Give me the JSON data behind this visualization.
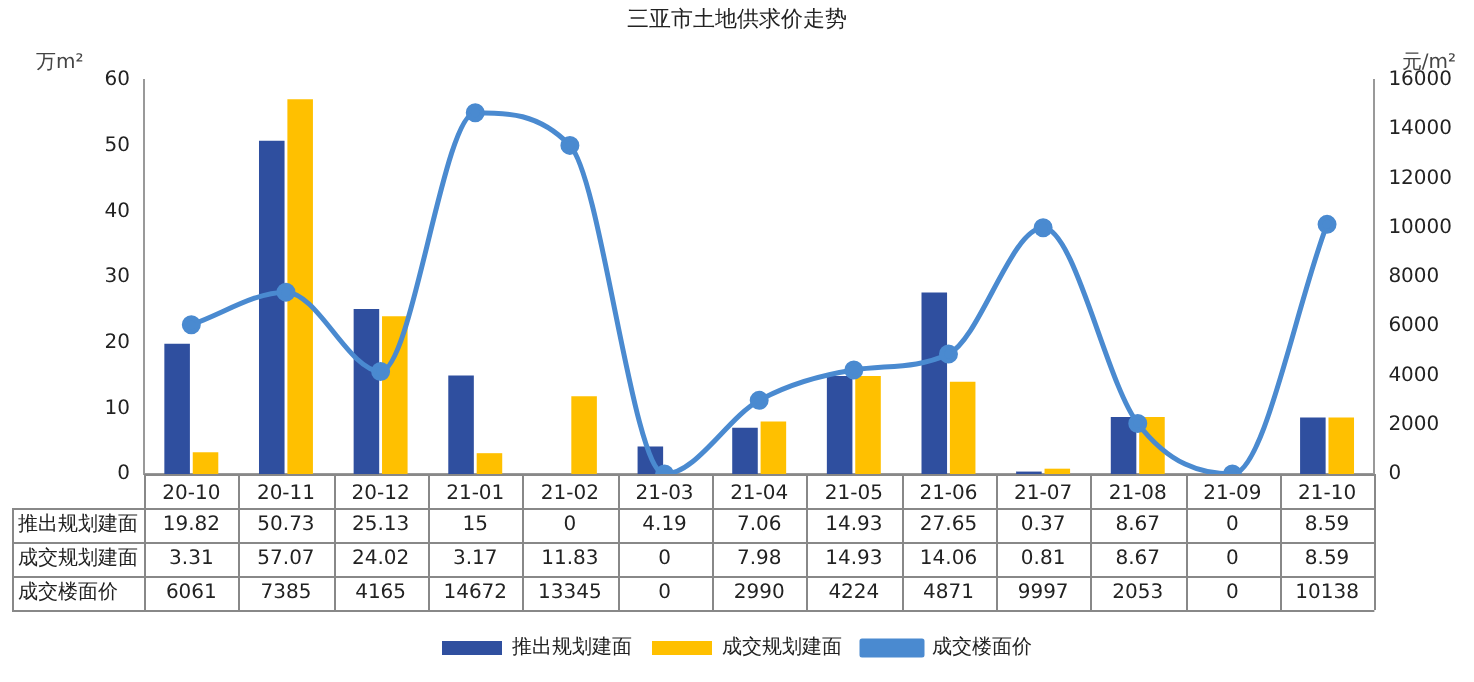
{
  "chart_data": {
    "type": "bar",
    "title": "三亚市土地供求价走势",
    "ylabel": "万m²",
    "y2label": "元/m²",
    "categories": [
      "20-10",
      "20-11",
      "20-12",
      "21-01",
      "21-02",
      "21-03",
      "21-04",
      "21-05",
      "21-06",
      "21-07",
      "21-08",
      "21-09",
      "21-10"
    ],
    "series": [
      {
        "name": "推出规划建面",
        "color": "#2f4f9f",
        "values": [
          19.82,
          50.73,
          25.13,
          15,
          0,
          4.19,
          7.06,
          14.93,
          27.65,
          0.37,
          8.67,
          0,
          8.59
        ]
      },
      {
        "name": "成交规划建面",
        "color": "#ffc000",
        "values": [
          3.31,
          57.07,
          24.02,
          3.17,
          11.83,
          0,
          7.98,
          14.93,
          14.06,
          0.81,
          8.67,
          0,
          8.59
        ]
      },
      {
        "name": "成交楼面价",
        "type": "line",
        "axis": "y2",
        "color": "#4a8ad0",
        "marker": "circle",
        "values": [
          6061,
          7385,
          4165,
          14672,
          13345,
          0,
          2990,
          4224,
          4871,
          9997,
          2053,
          0,
          10138
        ]
      }
    ],
    "ylim": [
      0,
      60
    ],
    "yticks": [
      0,
      10,
      20,
      30,
      40,
      50,
      60
    ],
    "y2lim": [
      0,
      16000
    ],
    "y2ticks": [
      0,
      2000,
      4000,
      6000,
      8000,
      10000,
      12000,
      14000,
      16000
    ],
    "grid": false,
    "legend": "bottom",
    "data_labels": true
  }
}
